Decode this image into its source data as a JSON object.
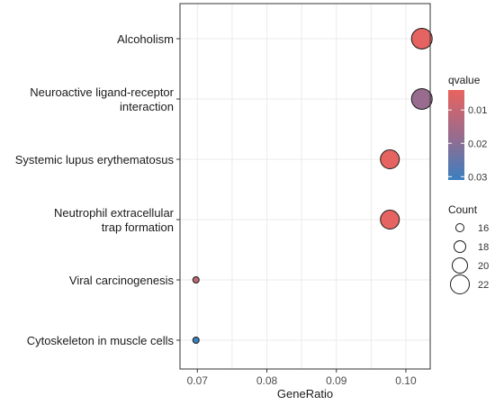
{
  "chart_data": {
    "type": "scatter",
    "xlabel": "GeneRatio",
    "xlim": [
      0.0675,
      0.1035
    ],
    "xticks": [
      0.07,
      0.08,
      0.09,
      0.1
    ],
    "xtick_labels": [
      "0.07",
      "0.08",
      "0.09",
      "0.10"
    ],
    "grid": true,
    "legend_position": "right",
    "points": [
      {
        "term": "Alcoholism",
        "lines": [
          "Alcoholism"
        ],
        "gene_ratio": 0.1023,
        "count": 23,
        "qvalue": 0.0045
      },
      {
        "term": "Neuroactive ligand-receptor interaction",
        "lines": [
          "Neuroactive ligand-receptor",
          "interaction"
        ],
        "gene_ratio": 0.1023,
        "count": 23,
        "qvalue": 0.018
      },
      {
        "term": "Systemic lupus erythematosus",
        "lines": [
          "Systemic lupus erythematosus"
        ],
        "gene_ratio": 0.0977,
        "count": 22,
        "qvalue": 0.0045
      },
      {
        "term": "Neutrophil extracellular trap formation",
        "lines": [
          "Neutrophil extracellular",
          "trap formation"
        ],
        "gene_ratio": 0.0977,
        "count": 22,
        "qvalue": 0.0045
      },
      {
        "term": "Viral carcinogenesis",
        "lines": [
          "Viral carcinogenesis"
        ],
        "gene_ratio": 0.0698,
        "count": 15,
        "qvalue": 0.011
      },
      {
        "term": "Cytoskeleton in muscle cells",
        "lines": [
          "Cytoskeleton in muscle cells"
        ],
        "gene_ratio": 0.0698,
        "count": 15,
        "qvalue": 0.031
      }
    ],
    "color_legend": {
      "title": "qvalue",
      "min": 0.004,
      "max": 0.031,
      "ticks": [
        0.01,
        0.02,
        0.03
      ],
      "tick_labels": [
        "0.01",
        "0.02",
        "0.03"
      ],
      "low_color": "#E8635E",
      "mid_color": "#9B6B8C",
      "high_color": "#3B7FC0"
    },
    "size_legend": {
      "title": "Count",
      "values": [
        16,
        18,
        20,
        22
      ],
      "labels": [
        "16",
        "18",
        "20",
        "22"
      ]
    }
  }
}
